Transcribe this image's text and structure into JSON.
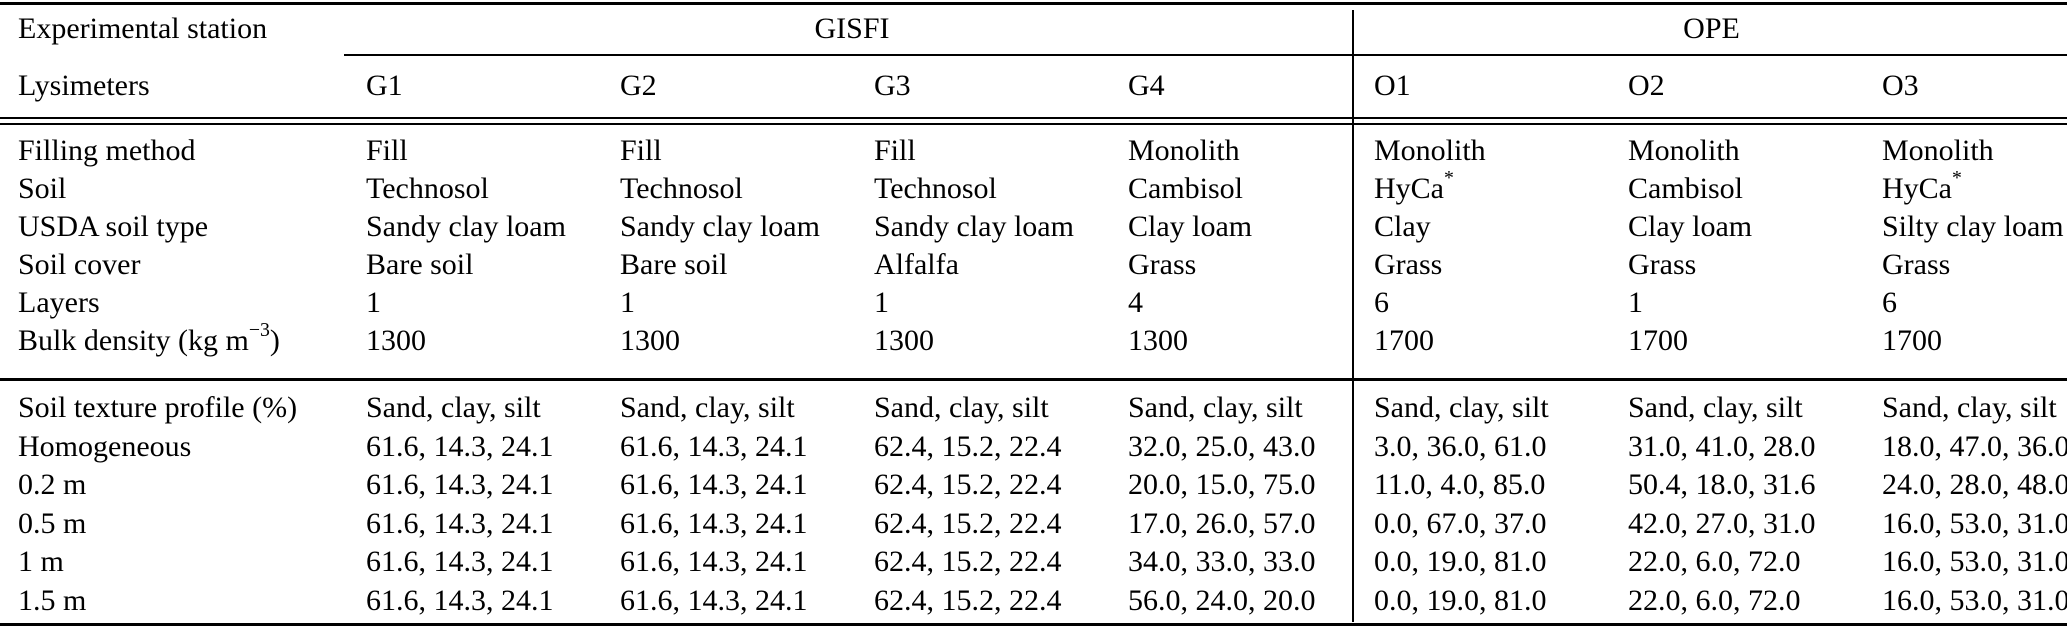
{
  "table": {
    "header": {
      "row1_label": "Experimental station",
      "groups": [
        {
          "label": "GISFI",
          "span": 4
        },
        {
          "label": "OPE",
          "span": 3
        }
      ],
      "row2_label": "Lysimeters",
      "columns": [
        "G1",
        "G2",
        "G3",
        "G4",
        "O1",
        "O2",
        "O3"
      ]
    },
    "section1": {
      "rows": [
        {
          "label": "Filling method",
          "cells": [
            "Fill",
            "Fill",
            "Fill",
            "Monolith",
            "Monolith",
            "Monolith",
            "Monolith"
          ]
        },
        {
          "label": "Soil",
          "cells": [
            "Technosol",
            "Technosol",
            "Technosol",
            "Cambisol",
            {
              "text": "HyCa",
              "sup": "*"
            },
            "Cambisol",
            {
              "text": "HyCa",
              "sup": "*"
            }
          ]
        },
        {
          "label": "USDA soil type",
          "cells": [
            "Sandy clay loam",
            "Sandy clay loam",
            "Sandy clay loam",
            "Clay loam",
            "Clay",
            "Clay loam",
            "Silty clay loam"
          ]
        },
        {
          "label": "Soil cover",
          "cells": [
            "Bare soil",
            "Bare soil",
            "Alfalfa",
            "Grass",
            "Grass",
            "Grass",
            "Grass"
          ]
        },
        {
          "label": "Layers",
          "cells": [
            "1",
            "1",
            "1",
            "4",
            "6",
            "1",
            "6"
          ]
        },
        {
          "label": {
            "text": "Bulk density (kg m",
            "sup": "−3",
            "after": ")"
          },
          "cells": [
            "1300",
            "1300",
            "1300",
            "1300",
            "1700",
            "1700",
            "1700"
          ]
        }
      ]
    },
    "section2": {
      "rows": [
        {
          "label": "Soil texture profile (%)",
          "cells": [
            "Sand, clay, silt",
            "Sand, clay, silt",
            "Sand, clay, silt",
            "Sand, clay, silt",
            "Sand, clay, silt",
            "Sand, clay, silt",
            "Sand, clay, silt"
          ]
        },
        {
          "label": "Homogeneous",
          "cells": [
            "61.6, 14.3, 24.1",
            "61.6, 14.3, 24.1",
            "62.4, 15.2, 22.4",
            "32.0, 25.0, 43.0",
            "3.0, 36.0, 61.0",
            "31.0, 41.0, 28.0",
            "18.0, 47.0, 36.0"
          ]
        },
        {
          "label": "0.2 m",
          "cells": [
            "61.6, 14.3, 24.1",
            "61.6, 14.3, 24.1",
            "62.4, 15.2, 22.4",
            "20.0, 15.0, 75.0",
            "11.0, 4.0, 85.0",
            "50.4, 18.0, 31.6",
            "24.0, 28.0, 48.0"
          ]
        },
        {
          "label": "0.5 m",
          "cells": [
            "61.6, 14.3, 24.1",
            "61.6, 14.3, 24.1",
            "62.4, 15.2, 22.4",
            "17.0, 26.0, 57.0",
            "0.0, 67.0, 37.0",
            "42.0, 27.0, 31.0",
            "16.0, 53.0, 31.0"
          ]
        },
        {
          "label": "1 m",
          "cells": [
            "61.6, 14.3, 24.1",
            "61.6, 14.3, 24.1",
            "62.4, 15.2, 22.4",
            "34.0, 33.0, 33.0",
            "0.0, 19.0, 81.0",
            "22.0, 6.0, 72.0",
            "16.0, 53.0, 31.0"
          ]
        },
        {
          "label": "1.5 m",
          "cells": [
            "61.6, 14.3, 24.1",
            "61.6, 14.3, 24.1",
            "62.4, 15.2, 22.4",
            "56.0, 24.0, 20.0",
            "0.0, 19.0, 81.0",
            "22.0, 6.0, 72.0",
            "16.0, 53.0, 31.0"
          ]
        }
      ]
    }
  }
}
